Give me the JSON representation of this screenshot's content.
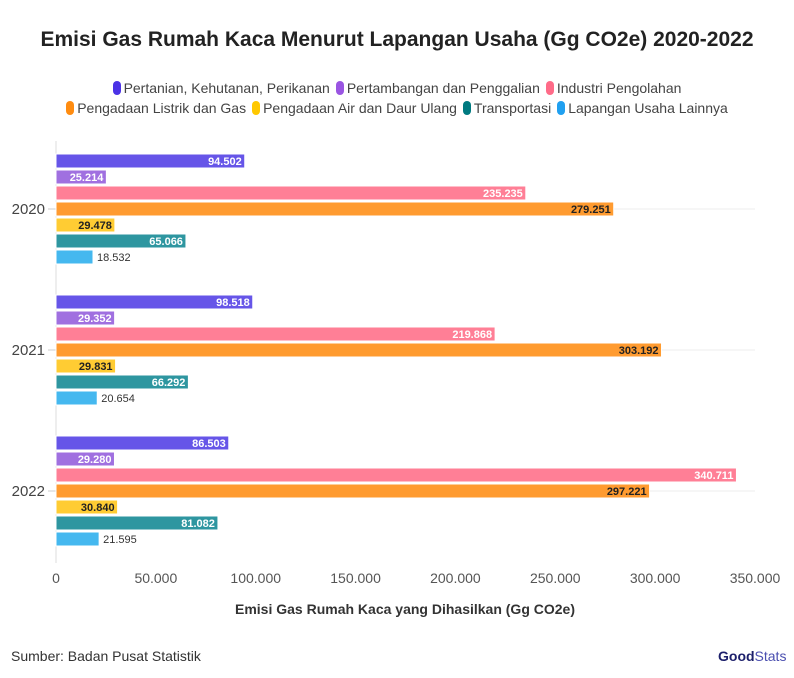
{
  "chart_data": {
    "type": "bar",
    "orientation": "horizontal",
    "title": "Emisi Gas Rumah Kaca Menurut Lapangan Usaha (Gg CO2e) 2020-2022",
    "xlabel": "Emisi Gas Rumah Kaca yang Dihasilkan (Gg CO2e)",
    "ylabel": "",
    "categories": [
      "2020",
      "2021",
      "2022"
    ],
    "xlim": [
      0,
      350000
    ],
    "xticks": [
      0,
      50000,
      100000,
      150000,
      200000,
      250000,
      300000,
      350000
    ],
    "xtick_labels": [
      "0",
      "50.000",
      "100.000",
      "150.000",
      "200.000",
      "250.000",
      "300.000",
      "350.000"
    ],
    "legend_position": "top",
    "series": [
      {
        "name": "Pertanian, Kehutanan, Perikanan",
        "color": "#6655e8",
        "values": [
          94502,
          98518,
          86503
        ],
        "labels": [
          "94.502",
          "98.518",
          "86.503"
        ]
      },
      {
        "name": "Pertambangan dan Penggalian",
        "color": "#a070e0",
        "values": [
          25214,
          29352,
          29280
        ],
        "labels": [
          "25.214",
          "29.352",
          "29.280"
        ]
      },
      {
        "name": "Industri Pengolahan",
        "color": "#ff7f96",
        "values": [
          235235,
          219868,
          340711
        ],
        "labels": [
          "235.235",
          "219.868",
          "340.711"
        ]
      },
      {
        "name": "Pengadaan Listrik dan Gas",
        "color": "#ff9b30",
        "values": [
          279251,
          303192,
          297221
        ],
        "labels": [
          "279.251",
          "303.192",
          "297.221"
        ]
      },
      {
        "name": "Pengadaan Air dan Daur Ulang",
        "color": "#ffcc33",
        "values": [
          29478,
          29831,
          30840
        ],
        "labels": [
          "29.478",
          "29.831",
          "30.840"
        ]
      },
      {
        "name": "Transportasi",
        "color": "#2e96a0",
        "values": [
          65066,
          66292,
          81082
        ],
        "labels": [
          "65.066",
          "66.292",
          "81.082"
        ]
      },
      {
        "name": "Lapangan Usaha Lainnya",
        "color": "#45b8ef",
        "values": [
          18532,
          20654,
          21595
        ],
        "labels": [
          "18.532",
          "20.654",
          "21.595"
        ]
      }
    ]
  },
  "legend_colors": [
    "#4b32e6",
    "#9a55e2",
    "#ff6b88",
    "#ff8c10",
    "#ffc800",
    "#007a80",
    "#20a0f0"
  ],
  "source": "Sumber: Badan Pusat Statistik",
  "logo": {
    "bold": "Good",
    "light": "Stats"
  }
}
